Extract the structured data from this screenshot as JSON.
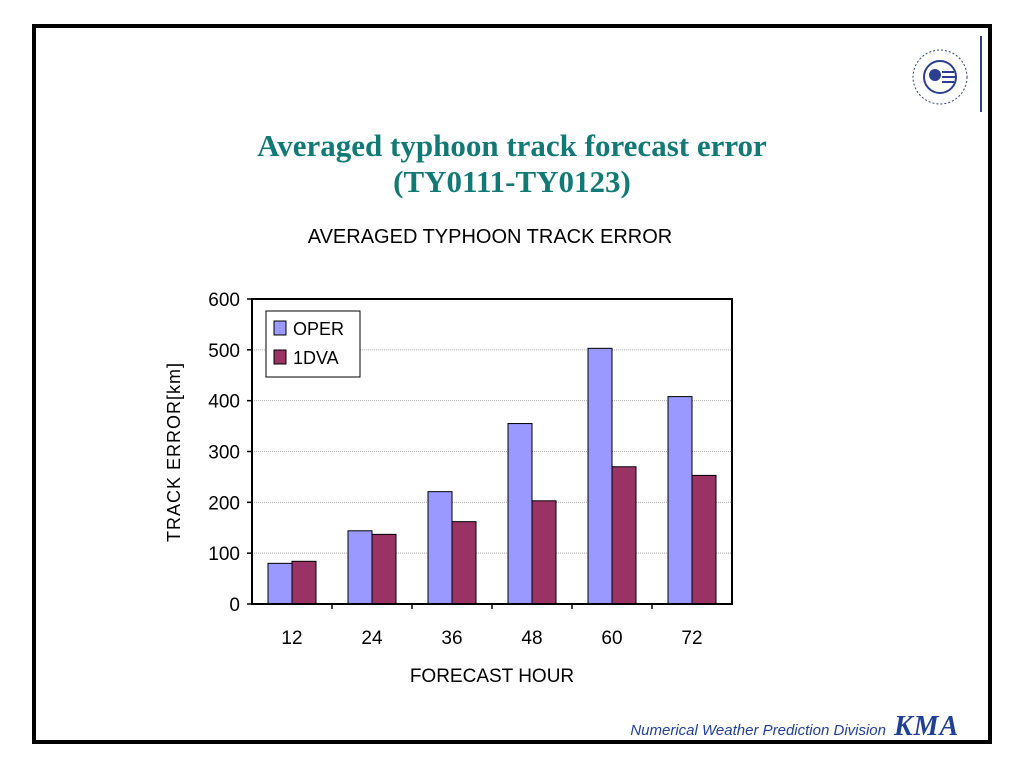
{
  "slide": {
    "title_line1": "Averaged typhoon track forecast error",
    "title_line2": "(TY0111-TY0123)",
    "footer_text": "Numerical Weather Prediction Division",
    "footer_logo": "KMA"
  },
  "logo": {
    "icon": "kma-emblem-icon"
  },
  "chart_data": {
    "type": "bar",
    "title": "AVERAGED TYPHOON TRACK ERROR",
    "xlabel": "FORECAST HOUR",
    "ylabel": "TRACK ERROR[km]",
    "categories": [
      "12",
      "24",
      "36",
      "48",
      "60",
      "72"
    ],
    "series": [
      {
        "name": "OPER",
        "values": [
          80,
          144,
          221,
          355,
          503,
          408
        ],
        "color": "#9999ff"
      },
      {
        "name": "1DVA",
        "values": [
          84,
          137,
          162,
          203,
          270,
          253
        ],
        "color": "#993366"
      }
    ],
    "ylim": [
      0,
      600
    ],
    "yticks": [
      "0",
      "100",
      "200",
      "300",
      "400",
      "500",
      "600"
    ],
    "grid": true,
    "legend": "top-left"
  }
}
